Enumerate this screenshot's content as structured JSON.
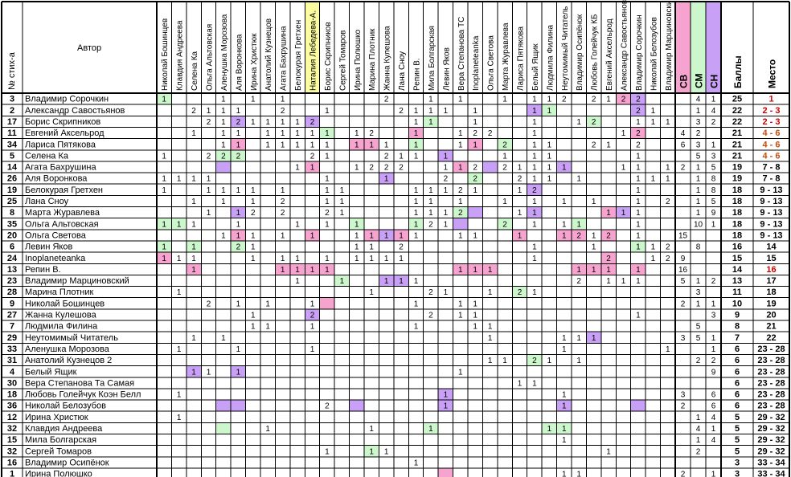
{
  "header": {
    "num_col": "№ стих-а",
    "author_col": "Автор",
    "score_col": "Баллы",
    "place_col": "Место"
  },
  "colors": {
    "pink": "#f7a3cf",
    "green": "#ccf6cc",
    "purple": "#c8a0f5",
    "highlight_yellow": "#fbfba0",
    "place_red": "#cc0000",
    "place_orange": "#c05010"
  },
  "reviewers": [
    "Николай Бошинцев",
    "Клавдия Андреева",
    "Селена Ка",
    "Ольга Альтовская",
    "Аленушка Морозова",
    "Аля Воронкова",
    "Ирина Христюк",
    "Анатолий Кузнецов",
    "Агата Бахрушина",
    "Белокурая Гретхен",
    "Наталия Лебедева-А.",
    "Борис Скрипников",
    "Сергей Томаров",
    "Ирина Полюшко",
    "Марина Плотник",
    "Жанна Кулешова",
    "Лана Сноу",
    "Репин В.",
    "Мила Болгарская",
    "Левин Яков",
    "Вера Степанова ТС",
    "Inoplaneteanka",
    "Ольга Светова",
    "Марта Журавлева",
    "Лариса Пятякова",
    "Белый Ящик",
    "Людмила Филина",
    "Неутомимый Читатель",
    "Владимир Осипёнок",
    "Любовь Голейчук КБ",
    "Евгений Аксельрод",
    "Александр Савостьянов",
    "Владимир Сорочкин",
    "Николай Белозубов",
    "Владимир Марциновский"
  ],
  "highlighted_reviewer": "Наталия Лебедева-А.",
  "category_cols": [
    "СВ",
    "СМ",
    "СН"
  ],
  "rows": [
    {
      "num": "3",
      "author": "Владимир Сорочкин",
      "cells": "1 . . . 1 . 1 . 1 . . . . . . 2 . . 1 . 1 . . 1 . 1 1 2 . 2 1 2 2 . .",
      "colors": "g . . . . . . . . . . . . . . . . . . . . . . . . . . . . . . p u . .",
      "cat": [
        "",
        "4",
        "1"
      ],
      "score": "25",
      "place": "1",
      "pc": "red"
    },
    {
      "num": "2",
      "author": "Александр Савостьянов",
      "cells": ". . 2 1 1 1 . . 2 . . 1 . . . . 2 1 1 1 . 1 . . . 1 1 . . . . . 2 1 .",
      "colors": ". . . . . . . . . . . . . . . . . . . . . . . . . u g . . . . . u . .",
      "cat": [
        "",
        "1",
        "4"
      ],
      "score": "22",
      "place": "2 - 3",
      "pc": "red"
    },
    {
      "num": "17",
      "author": "Борис Скрипников",
      "cells": ". . . 2 1 2 1 1 1 1 2 . . . . . . 1 1 . . 1 . . . 1 . . 1 2 . . 1 1 1",
      "colors": ". . . . . u . . . . u . . . . . . . g . . . . . . . . . . g . . . . .",
      "cat": [
        "",
        "3",
        "2"
      ],
      "score": "22",
      "place": "2 - 3",
      "pc": "red"
    },
    {
      "num": "11",
      "author": "Евгений Аксельрод",
      "cells": ". . 1 . 1 1 . 1 1 1 1 1 . 1 2 . . 1 . . 1 2 2 . . 1 . . . . . 1 2 . .",
      "colors": ". . . . . . . . . . . g . . . . . p . . . . . . . . . . . . . . p . .",
      "cat": [
        "4",
        "2",
        ""
      ],
      "score": "21",
      "place": "4 - 6",
      "pc": "orange"
    },
    {
      "num": "34",
      "author": "Лариса Пятякова",
      "cells": ". . . . 1 1 . 1 1 1 1 1 . 1 1 1 . 1 . . 1 1 . 2 . 1 1 . . 2 1 . 2 . .",
      "colors": ". . . . . p . . . . . . . p p . . g . . . p . g . . . . . . . . . . .",
      "cat": [
        "6",
        "3",
        "1"
      ],
      "score": "21",
      "place": "4 - 6",
      "pc": "orange"
    },
    {
      "num": "5",
      "author": "Селена Ка",
      "cells": "1 . . 2 2 2 . . . . 2 1 . . . 2 1 1 . 1 . . . 1 . 1 1 . . . . . 1 . .",
      "colors": ". . . . g g . . . . . . . . . . . . . u . . . . . . . . . . . . . . .",
      "cat": [
        "",
        "5",
        "3"
      ],
      "score": "21",
      "place": "4 - 6",
      "pc": "orange"
    },
    {
      "num": "14",
      "author": "Агата Бахрушина",
      "cells": ". . . . . . . . . 1 1 . . 1 2 2 2 . . 1 1 2 . 2 1 1 1 1 . . . 1 1 . 1",
      "colors": ". . . . u . . . . . p . . . . . . . . . p . u . . . . u . . . . . . .",
      "cat": [
        "2",
        "1",
        "5"
      ],
      "score": "19",
      "place": "7 - 8",
      "pc": "black"
    },
    {
      "num": "26",
      "author": "Аля Воронкова",
      "cells": "1 1 1 1 . . . . . . . 1 . . . 1 . . . 2 . 2 . . 2 1 1 . 1 . . . 1 1 1",
      "colors": ". . . . . . . . . . . . . . . u . . . . . g . . . . . . . . . . . . .",
      "cat": [
        "",
        "1",
        "8"
      ],
      "score": "19",
      "place": "7 - 8",
      "pc": "black"
    },
    {
      "num": "19",
      "author": "Белокурая Гретхен",
      "cells": "1 . . 1 1 1 1 . 1 . . 1 1 . . . . 1 1 1 2 1 . . 1 2 . . . . . . 1 . .",
      "colors": ". . . . . . . . . . . . . . . . . . . . . . . . . u . . . . . . . . .",
      "cat": [
        "",
        "1",
        "8"
      ],
      "score": "18",
      "place": "9 - 13",
      "pc": "black"
    },
    {
      "num": "25",
      "author": "Лана Сноу",
      "cells": ". . 1 . 1 . 1 . 2 . . 1 1 . . . . 1 1 . 1 . . 1 . 1 . 1 . 1 . . 1 . 2",
      "colors": ". . . . . . . . . . . . . . . . . . . . . . . . . . . . . . . . . . .",
      "cat": [
        "",
        "1",
        "5"
      ],
      "score": "18",
      "place": "9 - 13",
      "pc": "black"
    },
    {
      "num": "8",
      "author": "Марта Журавлева",
      "cells": ". . . 1 . 1 2 . 2 . . 2 1 . . . . 1 1 1 2 . . . 1 1 . . . . 1 1 1 . .",
      "colors": ". . . . . u . . . . . . . . . . . . . . g u . . . u . . . . p u . . .",
      "cat": [
        "",
        "1",
        "9"
      ],
      "score": "18",
      "place": "9 - 13",
      "pc": "black"
    },
    {
      "num": "35",
      "author": "Ольга Альтовская",
      "cells": "1 1 1 . . 1 . . . 1 . 1 . 1 . . . 1 2 1 . . . 2 . 1 . 1 1 . . . 1 . .",
      "colors": "g g . . . . . . . . . . . g . . . g . . u . . g . . . . g . . . . . .",
      "cat": [
        "",
        "10",
        "1"
      ],
      "score": "18",
      "place": "9 - 13",
      "pc": "black"
    },
    {
      "num": "20",
      "author": "Ольга Светова",
      "cells": ". . . . 1 1 1 . 1 . 1 . . 1 1 1 1 1 . . 1 1 . . 1 . . 1 2 1 2 . 1 . .",
      "colors": ". . . . . p . . . . p . . . p u p . . . . . . . p . . p p . p . . . .",
      "cat": [
        "15",
        "",
        ""
      ],
      "score": "18",
      "place": "9 - 13",
      "pc": "black"
    },
    {
      "num": "6",
      "author": "Левин Яков",
      "cells": "1 . 1 . . 2 1 . . . . . . 1 1 . 2 . . . . . . . . 1 . . . 1 . . 1 1 2",
      "colors": "g . g . . g . . . . . . . . . . . . . . . . . . . . . . . . . . g . .",
      "cat": [
        "",
        "8",
        ""
      ],
      "score": "16",
      "place": "14",
      "pc": "black"
    },
    {
      "num": "24",
      "author": "Inoplaneteanka",
      "cells": "1 1 1 . . . 1 . 1 1 . 1 . 1 1 1 1 . . . . . . . . 1 . . . . 2 . . 1 2",
      "colors": "p . . . . . . . . . . . . . . . . . . . . . . . . . . . . . p . . . .",
      "cat": [
        "9",
        "",
        ""
      ],
      "score": "15",
      "place": "15",
      "pc": "black"
    },
    {
      "num": "13",
      "author": "Репин В.",
      "cells": ". . 1 . . . . . 1 1 1 1 . . . . . . . . 1 1 1 . . . . . 1 1 1 . 1 . .",
      "colors": ". . p . . . . . p p p p . . . . . . . . p p p . . . . . p p p . p . .",
      "cat": [
        "16",
        "",
        ""
      ],
      "score": "14",
      "place": "16",
      "pc": "red"
    },
    {
      "num": "23",
      "author": "Владимир Марциновский",
      "cells": ". . . . . . . . . 1 . . 1 . . 1 1 1 . . . . . . . . . . 2 . 1 1 1 . .",
      "colors": ". . . . . . . . . . . . g . . u u . . . . . . . . . . . . . . . . . .",
      "cat": [
        "5",
        "1",
        "2"
      ],
      "score": "13",
      "place": "17",
      "pc": "black"
    },
    {
      "num": "28",
      "author": "Марина Плотник",
      "cells": ". 1 . . . . . . . . . . . . 1 . . . 2 1 . . 1 . 2 1 . . . . . . . . .",
      "colors": ". . . . . . . . . . . . . . . . . . . . . . . . g . . . . . . . . . .",
      "cat": [
        "",
        "3",
        ""
      ],
      "score": "11",
      "place": "18",
      "pc": "black"
    },
    {
      "num": "9",
      "author": "Николай Бошинцев",
      "cells": ". . . 2 . 1 . 1 . . 1 . . . . . . 1 . . 1 1 . . . . . . . . . . . . .",
      "colors": ". . . . . . . . . . . p . . . . . . . . . . . . . . . . . . . . . . .",
      "cat": [
        "2",
        "1",
        "1"
      ],
      "score": "10",
      "place": "19",
      "pc": "black"
    },
    {
      "num": "27",
      "author": "Жанна Кулешова",
      "cells": ". . . . . . 1 . . . 2 . . . . . . . 2 . 1 1 . . . . . . . . . . 1 . .",
      "colors": ". . . . . . . . . . u . . . . . . . . . . . . . . . . . . . . . . . .",
      "cat": [
        "",
        "",
        "3"
      ],
      "score": "9",
      "place": "20",
      "pc": "black"
    },
    {
      "num": "7",
      "author": "Людмила Филина",
      "cells": ". . . . . . 1 1 . . 1 . . . . . . 1 . . . 1 1 . . . . . . . . . . . .",
      "colors": ". . . . . . . . . . . . . . . . . . . . . . . . . . . . . . . . . . .",
      "cat": [
        "",
        "5",
        ""
      ],
      "score": "8",
      "place": "21",
      "pc": "black"
    },
    {
      "num": "29",
      "author": "Неутомимый Читатель",
      "cells": ". . 1 . 1 . . . . . . . . . . . . . . . . . 1 . . . . 1 1 1 . . . . .",
      "colors": ". . . . . . . . . . . . . . . . . . . . . . . . . . . . . u . . . . .",
      "cat": [
        "3",
        "5",
        "1"
      ],
      "score": "7",
      "place": "22",
      "pc": "black"
    },
    {
      "num": "33",
      "author": "Аленушка Морозова",
      "cells": ". 1 . . . 1 . . . . 1 . . . . . . . . . . . . . . . . 1 . . . . . . 1",
      "colors": ". . . . . . . . . . . . . . . . . . . . . . . . . . . . . . . . . . .",
      "cat": [
        "",
        "",
        "1"
      ],
      "score": "6",
      "place": "23 - 28",
      "pc": "black"
    },
    {
      "num": "31",
      "author": "Анатолий Кузнецов 2",
      "cells": ". . . . . . . . . . . . . . . . . . . . . . 1 1 . 2 1 . 1 . . . . . .",
      "colors": ". . . . . . . . . . . . . . . . . . . . . . . . . g . . . . . . . . .",
      "cat": [
        "",
        "2",
        "2"
      ],
      "score": "6",
      "place": "23 - 28",
      "pc": "black"
    },
    {
      "num": "4",
      "author": "Белый Ящик",
      "cells": ". . 1 1 . 1 . . . . . . . . . . . . . . 1 . . . . . . . . . . . . . .",
      "colors": ". . u . . u . . . . . . . . . . . . . . . . . . . . . . . . . . . . .",
      "cat": [
        "",
        "",
        "9"
      ],
      "score": "6",
      "place": "23 - 28",
      "pc": "black"
    },
    {
      "num": "30",
      "author": "Вера Степанова Та Самая",
      "cells": ". . . . . . . . . . . . . . . . . . . . . . . . 1 1 . . . . . . . . .",
      "colors": ". . . . . . . . . . . . . . . . . . . . . . . . . . . . . . . . . . .",
      "cat": [
        "",
        "",
        ""
      ],
      "score": "6",
      "place": "23 - 28",
      "pc": "black"
    },
    {
      "num": "18",
      "author": "Любовь Голейчук Коэн Белл",
      "cells": ". 1 . . . . . . . . . . . . . . . . . 1 . . . . . . . 1 . . . . . . .",
      "colors": ". . . . . . . . . . . . . . . . . . . u . . . . . . . . . . . . . . .",
      "cat": [
        "3",
        "",
        "6"
      ],
      "score": "6",
      "place": "23 - 28",
      "pc": "black"
    },
    {
      "num": "36",
      "author": "Николай Белозубов",
      "cells": ". . . . . . . . . . . 2 . . . . . . . 1 . . . . . . . 1 . . . . . . .",
      "colors": ". . . . u u . . . . . . . u . . . . . u . . . . . . . u . . . . u . .",
      "cat": [
        "2",
        "",
        "6"
      ],
      "score": "6",
      "place": "23 - 28",
      "pc": "black"
    },
    {
      "num": "12",
      "author": "Ирина Христюк",
      "cells": ". 1 . . . . . . . . . . . . . . . . . . . . . . . . . . . . . . . . .",
      "colors": ". . . . . . . . . . . . . . . . . . . . . . . . . . . . . . . . . . .",
      "cat": [
        "",
        "1",
        "4"
      ],
      "score": "5",
      "place": "29 - 32",
      "pc": "black"
    },
    {
      "num": "32",
      "author": "Клавдия Андреева",
      "cells": ". . . . . . . 1 . . . . . . 1 . . . 1 . . . . . . . 1 1 . . . . . . .",
      "colors": ". . . . g . . . . . . . . . . . . . g . . . . . . . g g . . . . . . .",
      "cat": [
        "",
        "4",
        "1"
      ],
      "score": "5",
      "place": "29 - 32",
      "pc": "black"
    },
    {
      "num": "15",
      "author": "Мила Болгарская",
      "cells": ". . . . . . . . . . . . . . . . . . . . . . . . . . . 1 . . . . . . .",
      "colors": ". . . . . . . . . . . . . . . . . . . . . . . . . . . . . . . . . . .",
      "cat": [
        "",
        "1",
        "4"
      ],
      "score": "5",
      "place": "29 - 32",
      "pc": "black"
    },
    {
      "num": "32",
      "author": "Сергей Томаров",
      "cells": ". . . . . . . . . . . 1 . . 1 1 . . . . . . . . . . . . . . 1 . . . .",
      "colors": ". . . . . . . . . . . . . . g . . . . . . . . . . . . . . . . . . . .",
      "cat": [
        "",
        "2",
        ""
      ],
      "score": "5",
      "place": "29 - 32",
      "pc": "black"
    },
    {
      "num": "16",
      "author": "Владимир Осипёнок",
      "cells": ". . . . . . . . . . . . . . . . . 1 . . . . . . . . . . . . . . . . .",
      "colors": ". . . . . . . . . . . . . . . . . . . . . . . . . . . . . . . . . . .",
      "cat": [
        "",
        "",
        ""
      ],
      "score": "3",
      "place": "33 - 34",
      "pc": "black"
    },
    {
      "num": "1",
      "author": "Ирина Полюшко",
      "cells": ". . . . . . . . . . . . . . . . . . . . . . . . . . . 1 1 . . . . . .",
      "colors": ". . . . . . . . . . . . . . . . . . . p . . . . . . . . . . . . . . .",
      "cat": [
        "2",
        "",
        "1"
      ],
      "score": "3",
      "place": "33 - 34",
      "pc": "black"
    }
  ]
}
